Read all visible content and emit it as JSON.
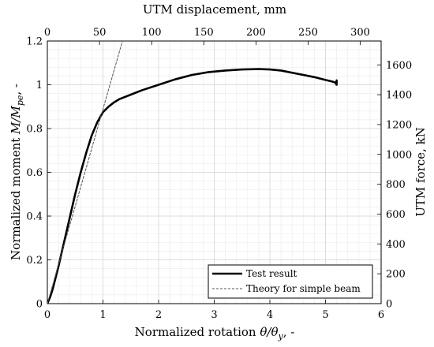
{
  "chart_data": {
    "type": "line",
    "x_axis_bottom": {
      "label_parts": [
        "Normalized rotation ",
        "θ/θ",
        "y",
        ", -"
      ],
      "ticks": [
        0,
        1,
        2,
        3,
        4,
        5,
        6
      ],
      "lim": [
        0,
        6
      ]
    },
    "x_axis_top": {
      "label": "UTM displacement, mm",
      "ticks": [
        0,
        50,
        100,
        150,
        200,
        250,
        300
      ],
      "lim": [
        0,
        320
      ]
    },
    "y_axis_left": {
      "label_parts": [
        "Normalized moment ",
        "M/M",
        "pe",
        ", -"
      ],
      "ticks": [
        0,
        0.2,
        0.4,
        0.6,
        0.8,
        1,
        1.2
      ],
      "tick_labels": [
        "0",
        "0.2",
        "0.4",
        "0.6",
        "0.8",
        "1",
        "1.2"
      ],
      "lim": [
        0,
        1.2
      ]
    },
    "y_axis_right": {
      "label": "UTM force, kN",
      "ticks": [
        0,
        200,
        400,
        600,
        800,
        1000,
        1200,
        1400,
        1600
      ],
      "lim": [
        0,
        1760
      ]
    },
    "grid": "on (major and minor)",
    "legend_position": "bottom-right",
    "series": [
      {
        "name": "Test result",
        "style": "solid",
        "color": "#000000",
        "x": [
          0,
          0.05,
          0.1,
          0.2,
          0.3,
          0.4,
          0.5,
          0.6,
          0.7,
          0.8,
          0.9,
          1.0,
          1.1,
          1.2,
          1.3,
          1.5,
          1.7,
          2.0,
          2.3,
          2.6,
          2.9,
          3.2,
          3.5,
          3.8,
          4.0,
          4.2,
          4.5,
          4.8,
          5.0,
          5.12,
          5.18,
          5.2,
          5.2
        ],
        "y": [
          0,
          0.03,
          0.07,
          0.17,
          0.28,
          0.39,
          0.5,
          0.6,
          0.69,
          0.77,
          0.83,
          0.875,
          0.9,
          0.92,
          0.935,
          0.955,
          0.975,
          1.0,
          1.025,
          1.045,
          1.058,
          1.065,
          1.07,
          1.072,
          1.07,
          1.065,
          1.05,
          1.035,
          1.022,
          1.015,
          1.01,
          1.0,
          1.02
        ]
      },
      {
        "name": "Theory for simple beam",
        "style": "dashed",
        "color": "#555555",
        "x": [
          0,
          1.35
        ],
        "y": [
          0,
          1.2
        ]
      }
    ]
  }
}
